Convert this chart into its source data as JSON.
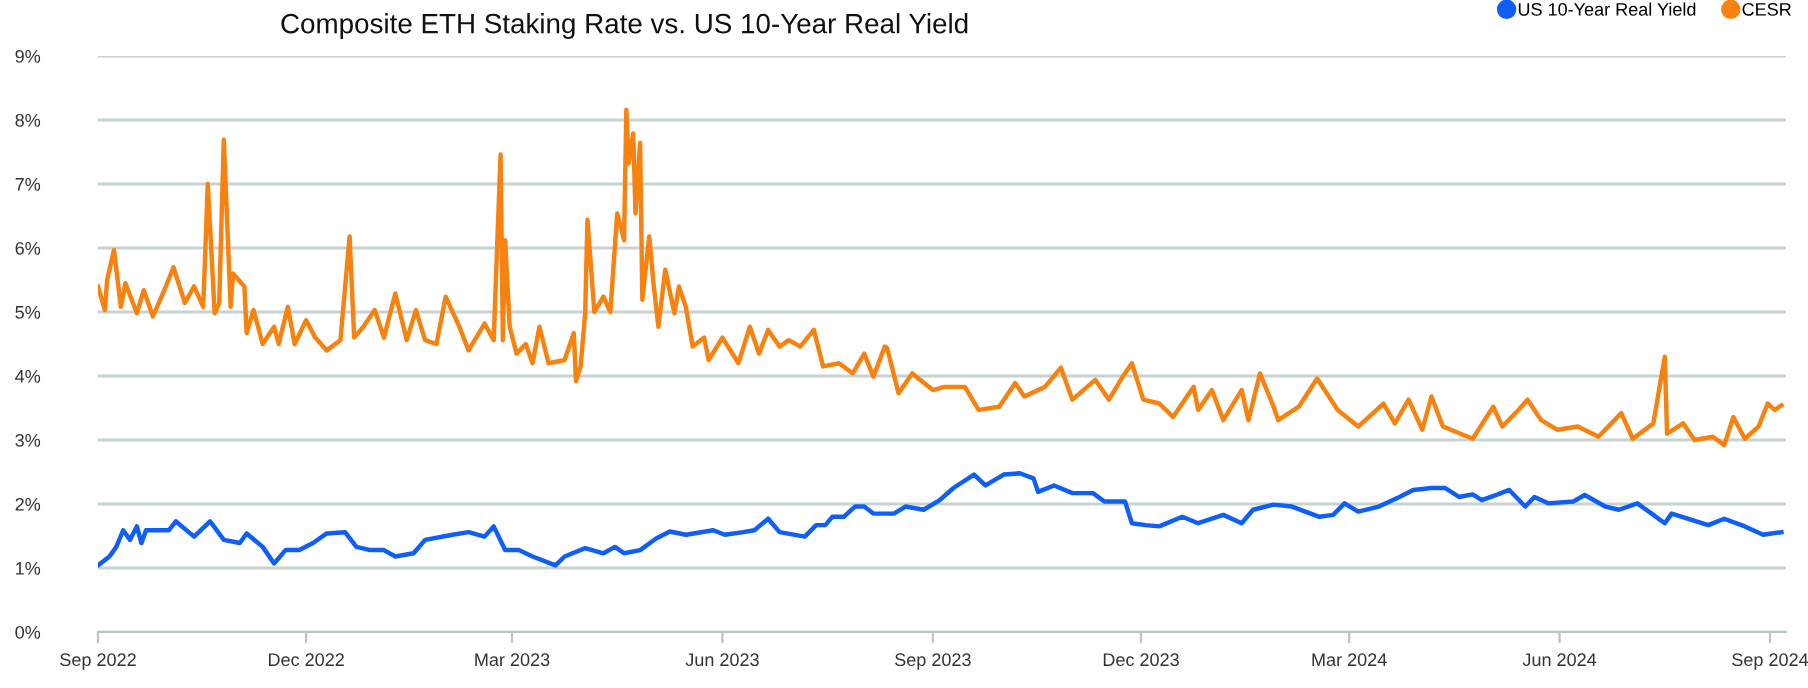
{
  "chart_data": {
    "type": "line",
    "title": "Composite ETH Staking Rate vs. US 10-Year Real Yield",
    "legend": "top right",
    "grid": "y",
    "marker": "none",
    "line_style": "solid",
    "xlim": [
      "2022-09-01",
      "2024-09-08"
    ],
    "xticks": [
      {
        "value": "2022-09-01",
        "label": "Sep 2022"
      },
      {
        "value": "2022-12-01",
        "label": "Dec 2022"
      },
      {
        "value": "2023-03-01",
        "label": "Mar 2023"
      },
      {
        "value": "2023-06-01",
        "label": "Jun 2023"
      },
      {
        "value": "2023-09-01",
        "label": "Sep 2023"
      },
      {
        "value": "2023-12-01",
        "label": "Dec 2023"
      },
      {
        "value": "2024-03-01",
        "label": "Mar 2024"
      },
      {
        "value": "2024-06-01",
        "label": "Jun 2024"
      },
      {
        "value": "2024-09-01",
        "label": "Sep 2024"
      }
    ],
    "ylim": [
      0,
      9
    ],
    "yticks": [
      {
        "value": 0,
        "label": "0%"
      },
      {
        "value": 1,
        "label": "1%"
      },
      {
        "value": 2,
        "label": "2%"
      },
      {
        "value": 3,
        "label": "3%"
      },
      {
        "value": 4,
        "label": "4%"
      },
      {
        "value": 5,
        "label": "5%"
      },
      {
        "value": 6,
        "label": "6%"
      },
      {
        "value": 7,
        "label": "7%"
      },
      {
        "value": 8,
        "label": "8%"
      },
      {
        "value": 9,
        "label": "9%"
      }
    ],
    "series": [
      {
        "name": "US 10-Year Real Yield",
        "color": "#0f5ef5",
        "x": [
          "2022-09-01",
          "2022-09-06",
          "2022-09-09",
          "2022-09-12",
          "2022-09-15",
          "2022-09-18",
          "2022-09-20",
          "2022-09-22",
          "2022-10-02",
          "2022-10-05",
          "2022-10-13",
          "2022-10-20",
          "2022-10-26",
          "2022-11-02",
          "2022-11-05",
          "2022-11-12",
          "2022-11-17",
          "2022-11-22",
          "2022-11-28",
          "2022-12-04",
          "2022-12-10",
          "2022-12-18",
          "2022-12-23",
          "2022-12-29",
          "2023-01-04",
          "2023-01-09",
          "2023-01-17",
          "2023-01-22",
          "2023-02-03",
          "2023-02-10",
          "2023-02-17",
          "2023-02-21",
          "2023-02-26",
          "2023-03-04",
          "2023-03-10",
          "2023-03-20",
          "2023-03-24",
          "2023-04-02",
          "2023-04-10",
          "2023-04-15",
          "2023-04-19",
          "2023-04-26",
          "2023-05-03",
          "2023-05-09",
          "2023-05-16",
          "2023-05-28",
          "2023-06-02",
          "2023-06-10",
          "2023-06-15",
          "2023-06-21",
          "2023-06-26",
          "2023-07-07",
          "2023-07-12",
          "2023-07-16",
          "2023-07-19",
          "2023-07-24",
          "2023-07-29",
          "2023-08-02",
          "2023-08-06",
          "2023-08-11",
          "2023-08-15",
          "2023-08-20",
          "2023-08-28",
          "2023-09-04",
          "2023-09-10",
          "2023-09-19",
          "2023-09-24",
          "2023-10-02",
          "2023-10-09",
          "2023-10-15",
          "2023-10-17",
          "2023-10-24",
          "2023-11-01",
          "2023-11-10",
          "2023-11-15",
          "2023-11-24",
          "2023-11-27",
          "2023-12-03",
          "2023-12-09",
          "2023-12-19",
          "2023-12-26",
          "2024-01-06",
          "2024-01-14",
          "2024-01-19",
          "2024-01-28",
          "2024-02-05",
          "2024-02-17",
          "2024-02-23",
          "2024-02-28",
          "2024-03-05",
          "2024-03-14",
          "2024-03-23",
          "2024-03-29",
          "2024-04-06",
          "2024-04-12",
          "2024-04-18",
          "2024-04-24",
          "2024-04-28",
          "2024-05-05",
          "2024-05-10",
          "2024-05-17",
          "2024-05-21",
          "2024-05-27",
          "2024-06-07",
          "2024-06-12",
          "2024-06-21",
          "2024-06-27",
          "2024-07-05",
          "2024-07-12",
          "2024-07-17",
          "2024-07-20",
          "2024-07-27",
          "2024-08-05",
          "2024-08-12",
          "2024-08-21",
          "2024-08-29",
          "2024-09-06"
        ],
        "values": [
          1.04,
          1.18,
          1.33,
          1.59,
          1.44,
          1.65,
          1.39,
          1.59,
          1.59,
          1.73,
          1.49,
          1.73,
          1.44,
          1.39,
          1.54,
          1.33,
          1.07,
          1.28,
          1.28,
          1.39,
          1.54,
          1.56,
          1.33,
          1.28,
          1.28,
          1.18,
          1.23,
          1.44,
          1.52,
          1.56,
          1.49,
          1.65,
          1.28,
          1.28,
          1.18,
          1.04,
          1.18,
          1.31,
          1.23,
          1.33,
          1.23,
          1.28,
          1.46,
          1.57,
          1.52,
          1.59,
          1.52,
          1.56,
          1.59,
          1.77,
          1.56,
          1.49,
          1.67,
          1.67,
          1.8,
          1.8,
          1.96,
          1.96,
          1.85,
          1.85,
          1.85,
          1.96,
          1.91,
          2.06,
          2.25,
          2.46,
          2.29,
          2.46,
          2.48,
          2.4,
          2.19,
          2.29,
          2.17,
          2.17,
          2.04,
          2.04,
          1.7,
          1.67,
          1.65,
          1.8,
          1.7,
          1.83,
          1.7,
          1.91,
          1.99,
          1.96,
          1.8,
          1.83,
          2.01,
          1.88,
          1.96,
          2.11,
          2.22,
          2.25,
          2.25,
          2.11,
          2.15,
          2.06,
          2.15,
          2.22,
          1.96,
          2.11,
          2.01,
          2.04,
          2.14,
          1.96,
          1.91,
          2.01,
          1.83,
          1.7,
          1.85,
          1.77,
          1.67,
          1.77,
          1.65,
          1.52,
          1.56
        ]
      },
      {
        "name": "CESR",
        "color": "#f7820f",
        "x": [
          "2022-09-01",
          "2022-09-04",
          "2022-09-05",
          "2022-09-08",
          "2022-09-11",
          "2022-09-13",
          "2022-09-18",
          "2022-09-21",
          "2022-09-25",
          "2022-09-30",
          "2022-10-04",
          "2022-10-09",
          "2022-10-13",
          "2022-10-17",
          "2022-10-19",
          "2022-10-22",
          "2022-10-24",
          "2022-10-26",
          "2022-10-29",
          "2022-10-30",
          "2022-11-04",
          "2022-11-05",
          "2022-11-08",
          "2022-11-12",
          "2022-11-17",
          "2022-11-19",
          "2022-11-23",
          "2022-11-26",
          "2022-12-01",
          "2022-12-05",
          "2022-12-10",
          "2022-12-16",
          "2022-12-20",
          "2022-12-22",
          "2022-12-26",
          "2022-12-31",
          "2023-01-04",
          "2023-01-09",
          "2023-01-14",
          "2023-01-18",
          "2023-01-22",
          "2023-01-27",
          "2023-01-31",
          "2023-02-06",
          "2023-02-10",
          "2023-02-17",
          "2023-02-21",
          "2023-02-24",
          "2023-02-25",
          "2023-02-26",
          "2023-02-28",
          "2023-03-03",
          "2023-03-07",
          "2023-03-10",
          "2023-03-13",
          "2023-03-17",
          "2023-03-24",
          "2023-03-28",
          "2023-03-29",
          "2023-03-31",
          "2023-04-02",
          "2023-04-03",
          "2023-04-06",
          "2023-04-10",
          "2023-04-13",
          "2023-04-16",
          "2023-04-19",
          "2023-04-20",
          "2023-04-21",
          "2023-04-23",
          "2023-04-24",
          "2023-04-26",
          "2023-04-27",
          "2023-04-30",
          "2023-05-02",
          "2023-05-04",
          "2023-05-07",
          "2023-05-11",
          "2023-05-13",
          "2023-05-16",
          "2023-05-19",
          "2023-05-24",
          "2023-05-26",
          "2023-06-01",
          "2023-06-08",
          "2023-06-13",
          "2023-06-17",
          "2023-06-21",
          "2023-06-26",
          "2023-06-30",
          "2023-07-05",
          "2023-07-11",
          "2023-07-15",
          "2023-07-22",
          "2023-07-28",
          "2023-08-02",
          "2023-08-06",
          "2023-08-11",
          "2023-08-12",
          "2023-08-17",
          "2023-08-23",
          "2023-09-01",
          "2023-09-06",
          "2023-09-15",
          "2023-09-21",
          "2023-09-30",
          "2023-10-07",
          "2023-10-11",
          "2023-10-20",
          "2023-10-27",
          "2023-11-01",
          "2023-11-11",
          "2023-11-17",
          "2023-11-23",
          "2023-11-27",
          "2023-12-02",
          "2023-12-09",
          "2023-12-15",
          "2023-12-24",
          "2023-12-26",
          "2024-01-01",
          "2024-01-06",
          "2024-01-14",
          "2024-01-17",
          "2024-01-22",
          "2024-01-28",
          "2024-01-30",
          "2024-02-08",
          "2024-02-16",
          "2024-02-25",
          "2024-03-05",
          "2024-03-16",
          "2024-03-21",
          "2024-03-27",
          "2024-04-02",
          "2024-04-06",
          "2024-04-11",
          "2024-04-24",
          "2024-05-03",
          "2024-05-07",
          "2024-05-14",
          "2024-05-18",
          "2024-05-24",
          "2024-05-31",
          "2024-06-09",
          "2024-06-18",
          "2024-06-28",
          "2024-07-03",
          "2024-07-12",
          "2024-07-17",
          "2024-07-18",
          "2024-07-25",
          "2024-07-30",
          "2024-08-07",
          "2024-08-12",
          "2024-08-16",
          "2024-08-21",
          "2024-08-27",
          "2024-08-31",
          "2024-09-03",
          "2024-09-06"
        ],
        "values": [
          5.4,
          5.03,
          5.5,
          5.97,
          5.08,
          5.45,
          4.98,
          5.34,
          4.93,
          5.34,
          5.7,
          5.14,
          5.4,
          5.08,
          7.0,
          4.98,
          5.14,
          7.69,
          5.08,
          5.6,
          5.4,
          4.67,
          5.03,
          4.5,
          4.77,
          4.5,
          5.08,
          4.5,
          4.87,
          4.6,
          4.4,
          4.56,
          6.18,
          4.6,
          4.77,
          5.03,
          4.6,
          5.29,
          4.56,
          5.03,
          4.56,
          4.5,
          5.24,
          4.77,
          4.4,
          4.82,
          4.56,
          7.46,
          4.56,
          6.12,
          4.77,
          4.35,
          4.5,
          4.2,
          4.77,
          4.2,
          4.25,
          4.67,
          3.92,
          4.15,
          4.98,
          6.44,
          5.0,
          5.24,
          5.0,
          6.54,
          6.12,
          8.16,
          7.32,
          7.79,
          6.54,
          7.64,
          5.19,
          6.18,
          5.4,
          4.77,
          5.66,
          4.98,
          5.4,
          5.08,
          4.46,
          4.6,
          4.25,
          4.6,
          4.2,
          4.77,
          4.35,
          4.72,
          4.46,
          4.56,
          4.46,
          4.72,
          4.15,
          4.2,
          4.04,
          4.35,
          3.99,
          4.46,
          4.44,
          3.73,
          4.04,
          3.78,
          3.83,
          3.83,
          3.47,
          3.52,
          3.89,
          3.68,
          3.83,
          4.13,
          3.63,
          3.94,
          3.63,
          3.99,
          4.2,
          3.63,
          3.57,
          3.36,
          3.83,
          3.47,
          3.78,
          3.31,
          3.78,
          3.31,
          4.04,
          3.52,
          3.31,
          3.52,
          3.96,
          3.47,
          3.21,
          3.57,
          3.26,
          3.63,
          3.16,
          3.68,
          3.21,
          3.02,
          3.52,
          3.21,
          3.47,
          3.63,
          3.31,
          3.16,
          3.21,
          3.05,
          3.42,
          3.02,
          3.26,
          4.3,
          3.1,
          3.26,
          3.0,
          3.05,
          2.92,
          3.36,
          3.02,
          3.21,
          3.57,
          3.47,
          3.54
        ]
      }
    ]
  }
}
